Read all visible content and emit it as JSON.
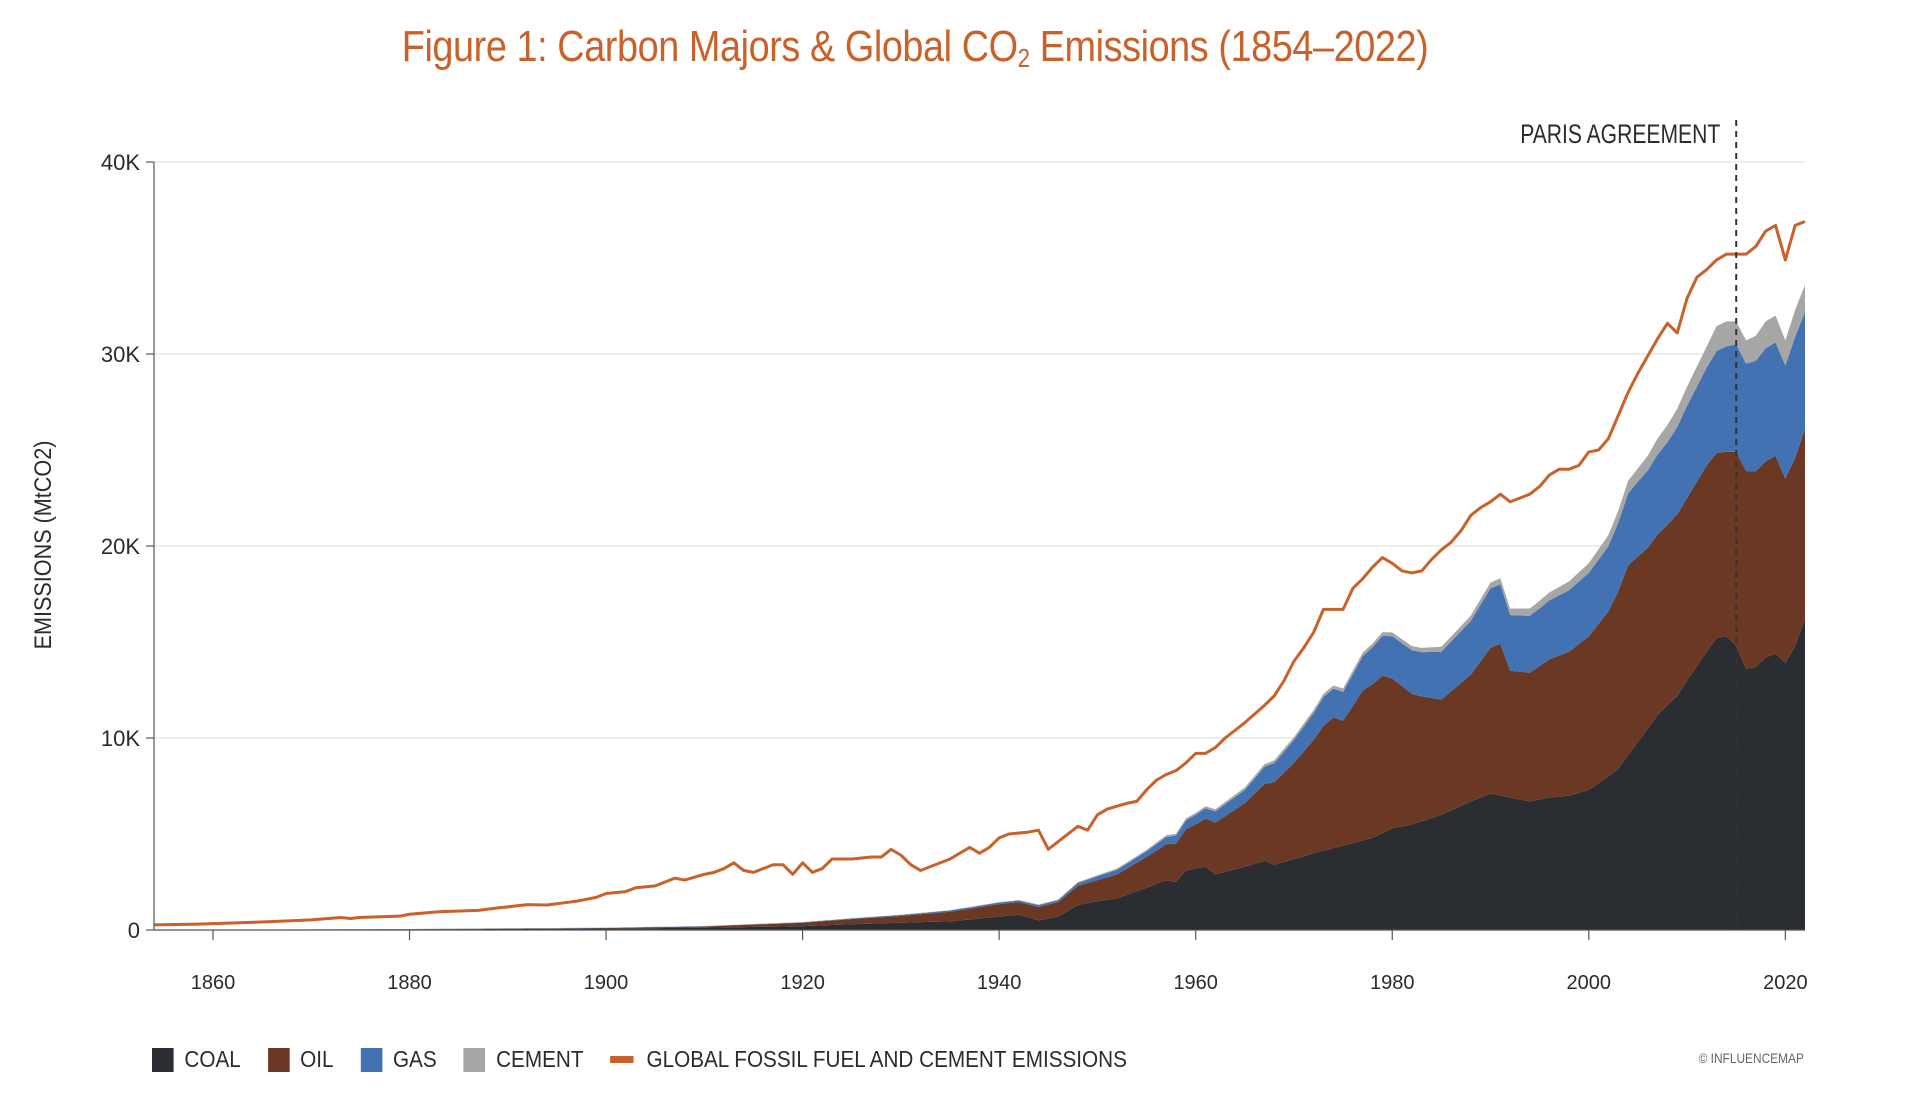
{
  "title": {
    "main": "Figure 1: Carbon Majors & Global CO",
    "sub": "2",
    "tail": " Emissions (1854–2022)"
  },
  "credit": "© INFLUENCEMAP",
  "colors": {
    "coal": "#2a2e33",
    "oil": "#6b3824",
    "gas": "#4372b3",
    "cement": "#a6a6a6",
    "global": "#c8612a",
    "grid": "#e3e3e3",
    "axis": "#555555"
  },
  "legend": [
    {
      "key": "coal",
      "label": "COAL",
      "shape": "square"
    },
    {
      "key": "oil",
      "label": "OIL",
      "shape": "square"
    },
    {
      "key": "gas",
      "label": "GAS",
      "shape": "square"
    },
    {
      "key": "cement",
      "label": "CEMENT",
      "shape": "square"
    },
    {
      "key": "global",
      "label": "GLOBAL FOSSIL FUEL AND CEMENT EMISSIONS",
      "shape": "line"
    }
  ],
  "chart_data": {
    "type": "area",
    "stacked": true,
    "ylabel": "EMISSIONS (MtCO2)",
    "xlabel": "",
    "xlim": [
      1854,
      2022
    ],
    "ylim": [
      0,
      40000
    ],
    "x_ticks": [
      1860,
      1880,
      1900,
      1920,
      1940,
      1960,
      1980,
      2000,
      2020
    ],
    "y_ticks": [
      {
        "value": 0,
        "label": "0"
      },
      {
        "value": 10000,
        "label": "10K"
      },
      {
        "value": 20000,
        "label": "20K"
      },
      {
        "value": 30000,
        "label": "30K"
      },
      {
        "value": 40000,
        "label": "40K"
      }
    ],
    "grid": true,
    "annotations": [
      {
        "x": 2015,
        "label": "PARIS AGREEMENT",
        "style": "dashed-vertical-line"
      }
    ],
    "series": [
      {
        "name": "COAL",
        "key": "coal",
        "points": [
          [
            1854,
            0
          ],
          [
            1880,
            30
          ],
          [
            1900,
            80
          ],
          [
            1910,
            120
          ],
          [
            1920,
            200
          ],
          [
            1925,
            300
          ],
          [
            1930,
            380
          ],
          [
            1935,
            450
          ],
          [
            1940,
            700
          ],
          [
            1942,
            800
          ],
          [
            1944,
            500
          ],
          [
            1946,
            700
          ],
          [
            1948,
            1300
          ],
          [
            1950,
            1500
          ],
          [
            1952,
            1650
          ],
          [
            1955,
            2200
          ],
          [
            1957,
            2600
          ],
          [
            1958,
            2500
          ],
          [
            1959,
            3100
          ],
          [
            1961,
            3300
          ],
          [
            1962,
            2900
          ],
          [
            1965,
            3300
          ],
          [
            1967,
            3600
          ],
          [
            1968,
            3400
          ],
          [
            1970,
            3700
          ],
          [
            1972,
            4000
          ],
          [
            1975,
            4400
          ],
          [
            1978,
            4800
          ],
          [
            1980,
            5300
          ],
          [
            1982,
            5500
          ],
          [
            1985,
            6000
          ],
          [
            1988,
            6700
          ],
          [
            1990,
            7100
          ],
          [
            1992,
            6900
          ],
          [
            1994,
            6700
          ],
          [
            1996,
            6900
          ],
          [
            1998,
            7000
          ],
          [
            2000,
            7300
          ],
          [
            2002,
            8000
          ],
          [
            2003,
            8400
          ],
          [
            2005,
            9800
          ],
          [
            2007,
            11200
          ],
          [
            2009,
            12200
          ],
          [
            2010,
            13000
          ],
          [
            2012,
            14500
          ],
          [
            2013,
            15200
          ],
          [
            2014,
            15300
          ],
          [
            2015,
            14800
          ],
          [
            2016,
            13600
          ],
          [
            2017,
            13700
          ],
          [
            2018,
            14200
          ],
          [
            2019,
            14400
          ],
          [
            2020,
            13900
          ],
          [
            2021,
            14800
          ],
          [
            2022,
            16200
          ]
        ]
      },
      {
        "name": "OIL",
        "key": "oil",
        "points": [
          [
            1854,
            0
          ],
          [
            1900,
            20
          ],
          [
            1910,
            60
          ],
          [
            1920,
            180
          ],
          [
            1930,
            350
          ],
          [
            1940,
            650
          ],
          [
            1942,
            650
          ],
          [
            1944,
            700
          ],
          [
            1946,
            750
          ],
          [
            1948,
            1000
          ],
          [
            1950,
            1100
          ],
          [
            1952,
            1250
          ],
          [
            1955,
            1600
          ],
          [
            1958,
            2000
          ],
          [
            1960,
            2300
          ],
          [
            1962,
            2700
          ],
          [
            1965,
            3300
          ],
          [
            1967,
            4000
          ],
          [
            1968,
            4300
          ],
          [
            1970,
            5000
          ],
          [
            1972,
            5900
          ],
          [
            1973,
            6500
          ],
          [
            1974,
            6800
          ],
          [
            1975,
            6500
          ],
          [
            1977,
            7800
          ],
          [
            1979,
            8200
          ],
          [
            1980,
            7800
          ],
          [
            1982,
            6800
          ],
          [
            1983,
            6500
          ],
          [
            1985,
            6000
          ],
          [
            1988,
            6600
          ],
          [
            1990,
            7600
          ],
          [
            1991,
            7900
          ],
          [
            1992,
            6600
          ],
          [
            1994,
            6700
          ],
          [
            1996,
            7200
          ],
          [
            1998,
            7500
          ],
          [
            2000,
            8000
          ],
          [
            2002,
            8600
          ],
          [
            2004,
            9900
          ],
          [
            2006,
            9400
          ],
          [
            2008,
            9400
          ],
          [
            2010,
            9500
          ],
          [
            2012,
            9700
          ],
          [
            2014,
            9600
          ],
          [
            2015,
            10100
          ],
          [
            2016,
            10300
          ],
          [
            2017,
            10200
          ],
          [
            2018,
            10200
          ],
          [
            2019,
            10300
          ],
          [
            2020,
            9600
          ],
          [
            2021,
            9800
          ],
          [
            2022,
            9900
          ]
        ]
      },
      {
        "name": "GAS",
        "key": "gas",
        "points": [
          [
            1854,
            0
          ],
          [
            1920,
            20
          ],
          [
            1940,
            80
          ],
          [
            1946,
            100
          ],
          [
            1950,
            200
          ],
          [
            1955,
            300
          ],
          [
            1960,
            500
          ],
          [
            1965,
            700
          ],
          [
            1970,
            1200
          ],
          [
            1973,
            1500
          ],
          [
            1975,
            1500
          ],
          [
            1977,
            1800
          ],
          [
            1980,
            2200
          ],
          [
            1983,
            2300
          ],
          [
            1985,
            2500
          ],
          [
            1988,
            2800
          ],
          [
            1990,
            3100
          ],
          [
            1991,
            3100
          ],
          [
            1992,
            2900
          ],
          [
            1995,
            3000
          ],
          [
            1998,
            3200
          ],
          [
            2000,
            3300
          ],
          [
            2002,
            3400
          ],
          [
            2005,
            3900
          ],
          [
            2008,
            4300
          ],
          [
            2010,
            4800
          ],
          [
            2012,
            5100
          ],
          [
            2014,
            5500
          ],
          [
            2015,
            5600
          ],
          [
            2016,
            5600
          ],
          [
            2018,
            5900
          ],
          [
            2019,
            5900
          ],
          [
            2020,
            5900
          ],
          [
            2021,
            6300
          ],
          [
            2022,
            6100
          ]
        ]
      },
      {
        "name": "CEMENT",
        "key": "cement",
        "points": [
          [
            1854,
            0
          ],
          [
            1940,
            20
          ],
          [
            1950,
            50
          ],
          [
            1960,
            100
          ],
          [
            1970,
            150
          ],
          [
            1980,
            200
          ],
          [
            1990,
            300
          ],
          [
            2000,
            500
          ],
          [
            2005,
            700
          ],
          [
            2008,
            900
          ],
          [
            2010,
            1000
          ],
          [
            2012,
            1100
          ],
          [
            2013,
            1300
          ],
          [
            2014,
            1300
          ],
          [
            2015,
            1200
          ],
          [
            2016,
            1200
          ],
          [
            2017,
            1300
          ],
          [
            2018,
            1400
          ],
          [
            2019,
            1400
          ],
          [
            2020,
            1300
          ],
          [
            2021,
            1400
          ],
          [
            2022,
            1400
          ]
        ]
      },
      {
        "name": "GLOBAL FOSSIL FUEL AND CEMENT EMISSIONS",
        "key": "global",
        "line": true,
        "points": [
          [
            1854,
            270
          ],
          [
            1858,
            300
          ],
          [
            1860,
            330
          ],
          [
            1865,
            420
          ],
          [
            1870,
            530
          ],
          [
            1873,
            650
          ],
          [
            1874,
            600
          ],
          [
            1875,
            660
          ],
          [
            1879,
            720
          ],
          [
            1880,
            820
          ],
          [
            1883,
            950
          ],
          [
            1887,
            1020
          ],
          [
            1889,
            1150
          ],
          [
            1892,
            1320
          ],
          [
            1894,
            1300
          ],
          [
            1897,
            1500
          ],
          [
            1899,
            1700
          ],
          [
            1900,
            1900
          ],
          [
            1902,
            2000
          ],
          [
            1903,
            2200
          ],
          [
            1905,
            2300
          ],
          [
            1907,
            2700
          ],
          [
            1908,
            2600
          ],
          [
            1910,
            2900
          ],
          [
            1911,
            3000
          ],
          [
            1912,
            3200
          ],
          [
            1913,
            3500
          ],
          [
            1914,
            3100
          ],
          [
            1915,
            3000
          ],
          [
            1917,
            3400
          ],
          [
            1918,
            3400
          ],
          [
            1919,
            2900
          ],
          [
            1920,
            3500
          ],
          [
            1921,
            3000
          ],
          [
            1922,
            3200
          ],
          [
            1923,
            3700
          ],
          [
            1925,
            3700
          ],
          [
            1927,
            3800
          ],
          [
            1928,
            3800
          ],
          [
            1929,
            4200
          ],
          [
            1930,
            3900
          ],
          [
            1931,
            3400
          ],
          [
            1932,
            3100
          ],
          [
            1933,
            3300
          ],
          [
            1935,
            3700
          ],
          [
            1937,
            4300
          ],
          [
            1938,
            4000
          ],
          [
            1939,
            4300
          ],
          [
            1940,
            4800
          ],
          [
            1941,
            5000
          ],
          [
            1943,
            5100
          ],
          [
            1944,
            5200
          ],
          [
            1945,
            4200
          ],
          [
            1946,
            4600
          ],
          [
            1947,
            5000
          ],
          [
            1948,
            5400
          ],
          [
            1949,
            5200
          ],
          [
            1950,
            6000
          ],
          [
            1951,
            6300
          ],
          [
            1953,
            6600
          ],
          [
            1954,
            6700
          ],
          [
            1955,
            7300
          ],
          [
            1956,
            7800
          ],
          [
            1957,
            8100
          ],
          [
            1958,
            8300
          ],
          [
            1959,
            8700
          ],
          [
            1960,
            9200
          ],
          [
            1961,
            9200
          ],
          [
            1962,
            9500
          ],
          [
            1963,
            10000
          ],
          [
            1965,
            10800
          ],
          [
            1967,
            11700
          ],
          [
            1968,
            12200
          ],
          [
            1969,
            13000
          ],
          [
            1970,
            14000
          ],
          [
            1971,
            14700
          ],
          [
            1972,
            15500
          ],
          [
            1973,
            16700
          ],
          [
            1974,
            16700
          ],
          [
            1975,
            16700
          ],
          [
            1976,
            17800
          ],
          [
            1977,
            18300
          ],
          [
            1978,
            18900
          ],
          [
            1979,
            19400
          ],
          [
            1980,
            19100
          ],
          [
            1981,
            18700
          ],
          [
            1982,
            18600
          ],
          [
            1983,
            18700
          ],
          [
            1984,
            19300
          ],
          [
            1985,
            19800
          ],
          [
            1986,
            20200
          ],
          [
            1987,
            20800
          ],
          [
            1988,
            21600
          ],
          [
            1989,
            22000
          ],
          [
            1990,
            22300
          ],
          [
            1991,
            22700
          ],
          [
            1992,
            22300
          ],
          [
            1993,
            22500
          ],
          [
            1994,
            22700
          ],
          [
            1995,
            23100
          ],
          [
            1996,
            23700
          ],
          [
            1997,
            24000
          ],
          [
            1998,
            24000
          ],
          [
            1999,
            24200
          ],
          [
            2000,
            24900
          ],
          [
            2001,
            25000
          ],
          [
            2002,
            25600
          ],
          [
            2003,
            26800
          ],
          [
            2004,
            28000
          ],
          [
            2005,
            29000
          ],
          [
            2006,
            29900
          ],
          [
            2007,
            30800
          ],
          [
            2008,
            31600
          ],
          [
            2009,
            31100
          ],
          [
            2010,
            32900
          ],
          [
            2011,
            34000
          ],
          [
            2012,
            34400
          ],
          [
            2013,
            34900
          ],
          [
            2014,
            35200
          ],
          [
            2015,
            35200
          ],
          [
            2016,
            35200
          ],
          [
            2017,
            35600
          ],
          [
            2018,
            36400
          ],
          [
            2019,
            36700
          ],
          [
            2020,
            34900
          ],
          [
            2021,
            36700
          ],
          [
            2022,
            36900
          ]
        ]
      }
    ]
  }
}
